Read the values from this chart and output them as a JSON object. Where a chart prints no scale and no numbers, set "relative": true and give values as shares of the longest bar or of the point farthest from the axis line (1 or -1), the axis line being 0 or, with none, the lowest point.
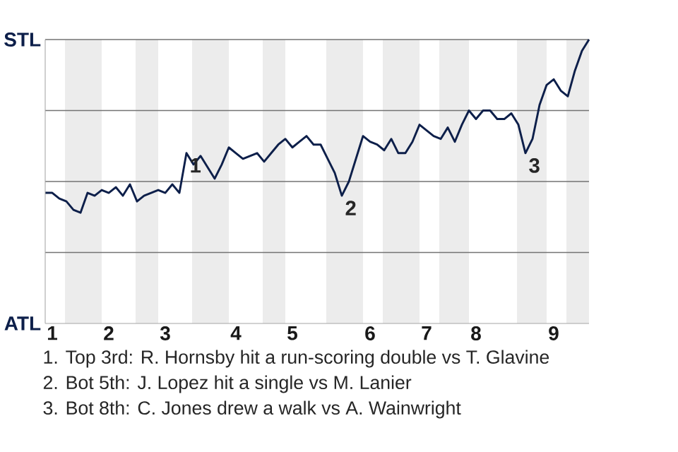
{
  "chart_data": {
    "type": "line",
    "relative": true,
    "categories": [
      null,
      "1",
      null,
      null,
      null,
      null,
      null,
      null,
      null,
      "2",
      null,
      null,
      null,
      null,
      null,
      null,
      null,
      "3",
      null,
      null,
      null,
      null,
      null,
      null,
      null,
      null,
      null,
      "4",
      null,
      null,
      null,
      null,
      null,
      null,
      null,
      "5",
      null,
      null,
      null,
      null,
      null,
      null,
      null,
      null,
      null,
      null,
      "6",
      null,
      null,
      null,
      null,
      null,
      null,
      null,
      "7",
      null,
      null,
      null,
      null,
      null,
      null,
      "8",
      null,
      null,
      null,
      null,
      null,
      null,
      null,
      null,
      null,
      null,
      "9",
      null,
      null,
      null,
      null,
      null
    ],
    "series": [
      {
        "color": "#0d1f4a",
        "values": [
          0.46,
          0.46,
          0.44,
          0.43,
          0.4,
          0.39,
          0.46,
          0.45,
          0.47,
          0.46,
          0.48,
          0.45,
          0.49,
          0.43,
          0.45,
          0.46,
          0.47,
          0.46,
          0.49,
          0.46,
          0.6,
          0.56,
          0.59,
          0.55,
          0.51,
          0.56,
          0.62,
          0.6,
          0.58,
          0.59,
          0.6,
          0.57,
          0.6,
          0.63,
          0.65,
          0.62,
          0.64,
          0.66,
          0.63,
          0.63,
          0.58,
          0.53,
          0.45,
          0.5,
          0.58,
          0.66,
          0.64,
          0.63,
          0.61,
          0.65,
          0.6,
          0.6,
          0.64,
          0.7,
          0.68,
          0.66,
          0.65,
          0.69,
          0.64,
          0.7,
          0.75,
          0.72,
          0.75,
          0.75,
          0.72,
          0.72,
          0.74,
          0.7,
          0.6,
          0.65,
          0.77,
          0.84,
          0.86,
          0.82,
          0.8,
          0.89,
          0.96,
          1
        ]
      }
    ],
    "grid": "y",
    "marker": "none",
    "line_style": "solid",
    "annotations": [
      "STL",
      "ATL",
      {
        "text": "1",
        "y": 0.6
      },
      {
        "text": "2",
        "y": 0.45
      },
      {
        "text": "3",
        "y": 0.6
      },
      "1. Top 3rd: R. Hornsby hit a run-scoring double vs T. Glavine",
      "2. Bot 5th: J. Lopez hit a single vs M. Lanier",
      "3. Bot 8th: C. Jones drew a walk vs A. Wainwright"
    ]
  }
}
